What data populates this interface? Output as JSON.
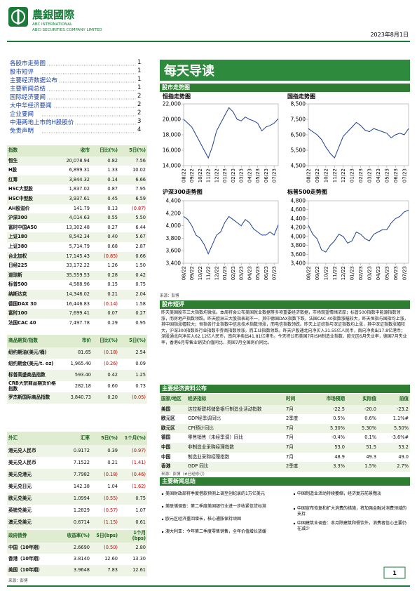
{
  "header": {
    "company_cn": "農銀國際",
    "company_en1": "ABC INTERNATIONAL",
    "company_en2": "ABCI SECURITIES COMPANY LIMITED",
    "date": "2023年8月1日"
  },
  "toc": [
    {
      "title": "各股市走势图",
      "page": "1"
    },
    {
      "title": "股市短评",
      "page": "1"
    },
    {
      "title": "主要经济数据公布",
      "page": "1"
    },
    {
      "title": "主要新闻总结",
      "page": "1"
    },
    {
      "title": "国际经济要闻",
      "page": "2"
    },
    {
      "title": "大中华经济要闻",
      "page": "2"
    },
    {
      "title": "企业要闻",
      "page": "2"
    },
    {
      "title": "中港两地上市的H股股价",
      "page": "3"
    },
    {
      "title": "免责声明",
      "page": "4"
    }
  ],
  "index_table": {
    "headers": [
      "指数",
      "收市",
      "日比(%)",
      "5日(%)"
    ],
    "rows": [
      [
        "恒生",
        "20,078.94",
        "0.82",
        "7.56"
      ],
      [
        "H股",
        "6,899.31",
        "1.33",
        "10.02"
      ],
      [
        "红筹",
        "3,844.32",
        "0.14",
        "6.66"
      ],
      [
        "HSC大型股",
        "1,837.02",
        "0.87",
        "7.95"
      ],
      [
        "HSC中型股",
        "3,937.61",
        "0.45",
        "6.59"
      ],
      [
        "AH股溢价",
        "141.79",
        "0.13",
        "(0.87)"
      ],
      [
        "沪深300",
        "4,014.63",
        "0.55",
        "5.50"
      ],
      [
        "富时中国A50",
        "13,302.48",
        "0.27",
        "6.44"
      ],
      [
        "上证180",
        "8,542.34",
        "0.40",
        "5.67"
      ],
      [
        "上证380",
        "5,714.79",
        "0.68",
        "2.87"
      ],
      [
        "台北加权",
        "17,145.43",
        "(0.85)",
        "0.66"
      ],
      [
        "日经225",
        "33,172.22",
        "1.26",
        "1.50"
      ],
      [
        "道琼斯",
        "35,559.53",
        "0.28",
        "0.42"
      ],
      [
        "标普500",
        "4,588.96",
        "0.15",
        "0.75"
      ],
      [
        "纳斯达克",
        "14,346.02",
        "0.21",
        "2.04"
      ],
      [
        "德国DAX 30",
        "16,446.83",
        "(0.14)",
        "1.58"
      ],
      [
        "富时100",
        "7,699.41",
        "0.07",
        "0.27"
      ],
      [
        "法国CAC 40",
        "7,497.78",
        "0.29",
        "0.95"
      ]
    ]
  },
  "commodity_table": {
    "headers": [
      "商品期货/指数",
      "市价",
      "日比(%)",
      "5日(%)"
    ],
    "rows": [
      [
        "纽约期油(美元/桶)",
        "81.65",
        "(0.18)",
        "2.54"
      ],
      [
        "纽约期金(美元/t. oz)",
        "1,965.40",
        "(0.26)",
        "0.09"
      ],
      [
        "标普高盛商品指数",
        "593.40",
        "0.42",
        "1.25"
      ],
      [
        "CRB大宗商品期货价格指数",
        "282.18",
        "0.60",
        "0.73"
      ],
      [
        "罗杰斯国际商品指数",
        "3,840.73",
        "0.20",
        "(0.05)"
      ]
    ]
  },
  "fx_table": {
    "headers": [
      "外汇",
      "汇率",
      "5日(%)",
      "1个月(%)"
    ],
    "rows": [
      [
        "港元兑人民币",
        "0.9172",
        "0.39",
        "(0.97)"
      ],
      [
        "美元兑人民币",
        "7.1522",
        "0.21",
        "(1.41)"
      ],
      [
        "美元兑港元",
        "7.7982",
        "(0.18)",
        "(0.46)"
      ],
      [
        "美元兑日元",
        "142.38",
        "1.04",
        "(1.62)"
      ],
      [
        "欧元兑美元",
        "1.0994",
        "(0.55)",
        "0.75"
      ],
      [
        "英镑兑美元",
        "1.2829",
        "(0.57)",
        "1.07"
      ],
      [
        "澳元兑美元",
        "0.6714",
        "(1.15)",
        "0.61"
      ]
    ]
  },
  "bond_table": {
    "headers": [
      "政府债券",
      "收益率(%)",
      "5日(bps)",
      "1个月(bps)"
    ],
    "rows": [
      [
        "中国（10年期）",
        "2.6690",
        "(0.50)",
        "2.80"
      ],
      [
        "香港（10年期）",
        "3.8140",
        "12.60",
        "13.30"
      ],
      [
        "美国（10年期）",
        "3.9648",
        "7.83",
        "12.61"
      ]
    ]
  },
  "left_source": "来源：彭博",
  "title": "每天导读",
  "chart_section": "股市走势图",
  "charts": [
    {
      "type": "line",
      "title": "恒指走势图",
      "color": "#1f3f8f",
      "categories": [
        "08/22",
        null,
        "09/22",
        null,
        "10/22",
        null,
        "11/22",
        null,
        "12/22",
        null,
        "01/23",
        null,
        "02/23",
        null,
        "03/23",
        null,
        "04/23",
        null,
        "05/23",
        null,
        "06/23",
        null,
        "07/23",
        null
      ],
      "values": [
        20000,
        19500,
        19000,
        18000,
        17000,
        16000,
        15000,
        16500,
        18500,
        19500,
        20500,
        21500,
        21000,
        20000,
        19800,
        20300,
        20000,
        19800,
        19500,
        18500,
        19000,
        19200,
        19500,
        20078
      ],
      "ylim": [
        14000,
        22000
      ],
      "yticks": [
        {
          "value": 14000,
          "label": "14,000"
        },
        {
          "value": 16000,
          "label": "16,000"
        },
        {
          "value": 18000,
          "label": "18,000"
        },
        {
          "value": 20000,
          "label": "20,000"
        },
        {
          "value": 22000,
          "label": "22,000"
        }
      ]
    },
    {
      "type": "line",
      "title": "国指走势图",
      "color": "#1f3f8f",
      "categories": [
        "08/22",
        null,
        "09/22",
        null,
        "10/22",
        null,
        "11/22",
        null,
        "12/22",
        null,
        "01/23",
        null,
        "02/23",
        null,
        "03/23",
        null,
        "04/23",
        null,
        "05/23",
        null,
        "06/23",
        null,
        "07/23",
        null
      ],
      "values": [
        6900,
        6700,
        6500,
        6200,
        5700,
        5300,
        5000,
        5700,
        6400,
        6700,
        7000,
        7300,
        7100,
        6800,
        6700,
        6900,
        6800,
        6700,
        6600,
        6300,
        6500,
        6600,
        6500,
        6899
      ],
      "ylim": [
        4500,
        8500
      ],
      "yticks": [
        {
          "value": 4500,
          "label": "4,500"
        },
        {
          "value": 5500,
          "label": "5,500"
        },
        {
          "value": 6500,
          "label": "6,500"
        },
        {
          "value": 7500,
          "label": "7,500"
        },
        {
          "value": 8500,
          "label": "8,500"
        }
      ]
    },
    {
      "type": "line",
      "title": "沪深300走势图",
      "color": "#1f3f8f",
      "categories": [
        "08/22",
        null,
        "09/22",
        null,
        "10/22",
        null,
        "11/22",
        null,
        "12/22",
        null,
        "01/23",
        null,
        "02/23",
        null,
        "03/23",
        null,
        "04/23",
        null,
        "05/23",
        null,
        "06/23",
        null,
        "07/23",
        null
      ],
      "values": [
        4150,
        4100,
        4000,
        3850,
        3800,
        3700,
        3550,
        3700,
        3850,
        3900,
        4050,
        4150,
        4100,
        4050,
        4000,
        4100,
        4050,
        3950,
        3900,
        3850,
        3850,
        3900,
        3850,
        4015
      ],
      "ylim": [
        3400,
        4400
      ],
      "yticks": [
        {
          "value": 3400,
          "label": "3,400"
        },
        {
          "value": 3600,
          "label": "3,600"
        },
        {
          "value": 3800,
          "label": "3,800"
        },
        {
          "value": 4000,
          "label": "4,000"
        },
        {
          "value": 4200,
          "label": "4,200"
        },
        {
          "value": 4400,
          "label": "4,400"
        }
      ]
    },
    {
      "type": "line",
      "title": "标普500走势图",
      "color": "#1f3f8f",
      "categories": [
        "08/22",
        null,
        "09/22",
        null,
        "10/22",
        null,
        "11/22",
        null,
        "12/22",
        null,
        "01/23",
        null,
        "02/23",
        null,
        "03/23",
        null,
        "04/23",
        null,
        "05/23",
        null,
        "06/23",
        null,
        "07/23",
        null
      ],
      "values": [
        4250,
        4050,
        3950,
        3700,
        3650,
        3800,
        3900,
        4050,
        4000,
        3850,
        3900,
        4100,
        4050,
        3950,
        3900,
        4050,
        4100,
        4150,
        4150,
        4300,
        4400,
        4450,
        4550,
        4589
      ],
      "ylim": [
        3400,
        4800
      ],
      "yticks": [
        {
          "value": 3400,
          "label": "3,400"
        },
        {
          "value": 3600,
          "label": "3,600"
        },
        {
          "value": 3800,
          "label": "3,800"
        },
        {
          "value": 4000,
          "label": "4,000"
        },
        {
          "value": 4200,
          "label": "4,200"
        },
        {
          "value": 4400,
          "label": "4,400"
        },
        {
          "value": 4600,
          "label": "4,600"
        },
        {
          "value": 4800,
          "label": "4,800"
        }
      ]
    }
  ],
  "chart_source": "来源：彭博",
  "commentary": {
    "heading": "股市短评",
    "text": "昨天美国股市三大指数均微涨。本周将会公布美国就业数据等多项重要经济数据，市场观望情绪浓厚；标普500指数中能源指数领涨，而房地产指数领跌。昨天欧洲三大股指表现不一，其中德国DAX指数下跌，法国CAC 40指数涨幅较大，昨天恒指与国指均上涨，其中国指涨幅较大；恒指各行业指数中信息技术指数领涨，而电信指数领跌。昨天上证综指与深证指数均上涨，其中深证指数涨幅较大，沪深300指数各行业指数中券商指数领涨，而工业指数领跌。昨天沪股通北向净买入31.55亿人民币，南向净卖出17.8亿港币；深股通北向净买入62.12亿人民币，南向净卖出41.81亿港币。今天将公布美国7月ISM制造业指数、欧元区6月失业率，德国7月失业率，香港6月零售业销货价值同比，英国7月全国房价同比。"
  },
  "econ": {
    "heading": "主要经济资料公布",
    "headers": [
      "国家/地区",
      "经济指标",
      "时间",
      "市场预期",
      "实际值",
      "前值"
    ],
    "rows": [
      [
        "美国",
        "达拉斯联邦储备银行制造业活动指数",
        "7月",
        "-22.5",
        "-20.0",
        "-23.2"
      ],
      [
        "欧元区",
        "GDP经季调同比",
        "2季度",
        "0.5%",
        "0.6%",
        "1.1%#"
      ],
      [
        "欧元区",
        "CPI预计同比",
        "7月",
        "5.30%",
        "5.30%",
        "5.50%"
      ],
      [
        "德国",
        "零售销售（未经季调）同比",
        "7月",
        "-0.4%",
        "0.1%",
        "-3.6%#"
      ],
      [
        "中国",
        "非制造业采购经理指数",
        "7月",
        "53.0",
        "51.5",
        "53.2"
      ],
      [
        "中国",
        "制造业采购经理指数",
        "7月",
        "48.9",
        "49.3",
        "49.0"
      ],
      [
        "香港",
        "GDP 同比",
        "2季度",
        "3.3%",
        "1.5%",
        "2.7%"
      ]
    ],
    "note": "来源：彭博（#已经修订）"
  },
  "news": {
    "heading": "主要新闻总结",
    "left": [
      "美国财政部将季度借款预测上调至创纪录的1万亿美元",
      "美联储调查：第二季度美国银行业进一步收紧信贷标准",
      "欧元区经济重回增长，核心通胀保持顽固",
      "澳大利亚：今年第二季度零售销售，全年价值增长放缓"
    ],
    "right": [
      "中国制造业活动持续萎缩，经济复苏前景黯淡",
      "中国宣布恢复和扩大消费的措施，将加强金融对消费领域的支持",
      "中国建筑业调查：本月除建筑和餐饮外，消费者信心主要仍在减少"
    ]
  },
  "page_number": "1"
}
